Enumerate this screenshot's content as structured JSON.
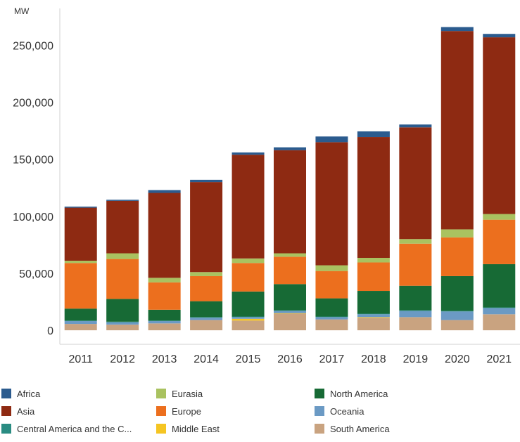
{
  "chart_data": {
    "type": "bar",
    "stacked": true,
    "unit_label": "MW",
    "categories": [
      "2011",
      "2012",
      "2013",
      "2014",
      "2015",
      "2016",
      "2017",
      "2018",
      "2019",
      "2020",
      "2021"
    ],
    "ylim": [
      0,
      280000
    ],
    "yticks": [
      0,
      50000,
      100000,
      150000,
      200000,
      250000
    ],
    "ytick_labels": [
      "0",
      "50,000",
      "100,000",
      "150,000",
      "200,000",
      "250,000"
    ],
    "grid": false,
    "legend_position": "bottom",
    "series": [
      {
        "name": "South America",
        "color": "#c9a380",
        "values": [
          5500,
          5000,
          6000,
          9000,
          8500,
          14500,
          9500,
          11000,
          11500,
          9000,
          14000
        ]
      },
      {
        "name": "Middle East",
        "color": "#f5c522",
        "values": [
          0,
          0,
          0,
          0,
          1500,
          500,
          0,
          500,
          0,
          0,
          0
        ]
      },
      {
        "name": "Oceania",
        "color": "#6b9ac4",
        "values": [
          2500,
          2000,
          2000,
          2000,
          1500,
          2000,
          2000,
          2500,
          5500,
          7500,
          5500
        ]
      },
      {
        "name": "Central America and the Caribbean",
        "color": "#2a8c82",
        "values": [
          500,
          500,
          500,
          500,
          500,
          500,
          500,
          500,
          500,
          500,
          500
        ]
      },
      {
        "name": "North America",
        "color": "#176a35",
        "values": [
          10500,
          20000,
          9500,
          14000,
          22000,
          23000,
          16000,
          20000,
          21500,
          30500,
          38000
        ]
      },
      {
        "name": "Europe",
        "color": "#ec6f1e",
        "values": [
          40000,
          35000,
          24000,
          22000,
          25000,
          24000,
          24000,
          25000,
          37000,
          34000,
          39000
        ]
      },
      {
        "name": "Eurasia",
        "color": "#a9c260",
        "values": [
          2000,
          5000,
          4000,
          3500,
          4000,
          3000,
          5000,
          4000,
          4000,
          7000,
          5000
        ]
      },
      {
        "name": "Asia",
        "color": "#8e2a12",
        "values": [
          46500,
          46000,
          74500,
          79000,
          91000,
          90500,
          108000,
          106000,
          98000,
          174000,
          155000
        ]
      },
      {
        "name": "Africa",
        "color": "#2b5b8e",
        "values": [
          1000,
          1000,
          2500,
          2000,
          2000,
          2500,
          5000,
          5000,
          2500,
          3500,
          3000
        ]
      }
    ],
    "legend": [
      {
        "name": "Africa",
        "color": "#2b5b8e"
      },
      {
        "name": "Asia",
        "color": "#8e2a12"
      },
      {
        "name": "Central America and the C...",
        "color": "#2a8c82"
      },
      {
        "name": "Eurasia",
        "color": "#a9c260"
      },
      {
        "name": "Europe",
        "color": "#ec6f1e"
      },
      {
        "name": "Middle East",
        "color": "#f5c522"
      },
      {
        "name": "North America",
        "color": "#176a35"
      },
      {
        "name": "Oceania",
        "color": "#6b9ac4"
      },
      {
        "name": "South America",
        "color": "#c9a380"
      }
    ]
  }
}
